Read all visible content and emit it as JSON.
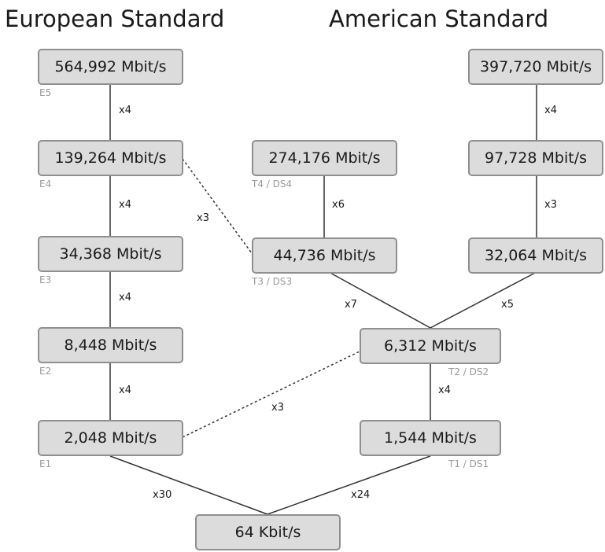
{
  "headings": {
    "european": "European Standard",
    "american": "American Standard"
  },
  "nodes": {
    "e5": "564,992 Mbit/s",
    "e4": "139,264 Mbit/s",
    "e3": "34,368 Mbit/s",
    "e2": "8,448 Mbit/s",
    "e1": "2,048 Mbit/s",
    "t4": "274,176 Mbit/s",
    "t3": "44,736 Mbit/s",
    "t2": "6,312 Mbit/s",
    "t1": "1,544 Mbit/s",
    "j_top": "397,720 Mbit/s",
    "j_mid": "97,728 Mbit/s",
    "j_low": "32,064 Mbit/s",
    "base": "64 Kbit/s"
  },
  "tags": {
    "e5": "E5",
    "e4": "E4",
    "e3": "E3",
    "e2": "E2",
    "e1": "E1",
    "t4": "T4 / DS4",
    "t3": "T3 / DS3",
    "t2": "T2 / DS2",
    "t1": "T1 / DS1"
  },
  "multipliers": {
    "e5_e4": "x4",
    "e4_e3": "x4",
    "e3_e2": "x4",
    "e2_e1": "x4",
    "e4_t3": "x3",
    "t4_t3": "x6",
    "jtop_jmid": "x4",
    "jmid_jlow": "x3",
    "t3_t2": "x7",
    "jlow_t2": "x5",
    "e1_t2": "x3",
    "t2_t1": "x4",
    "e1_base": "x30",
    "t1_base": "x24"
  },
  "colors": {
    "node_fill": "#dcdcdc",
    "node_border": "#8f8f8f",
    "line": "#333333",
    "tag_text": "#9a9a9a"
  }
}
